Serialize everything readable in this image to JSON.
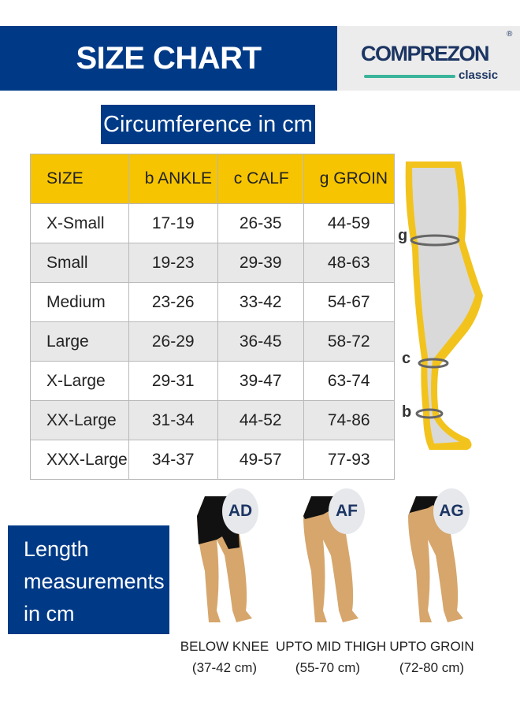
{
  "header": {
    "title": "SIZE CHART",
    "brand": "COMPREZON",
    "brand_sub": "classic",
    "registered": "®"
  },
  "circumference_title": "Circumference in cm",
  "table": {
    "headers": [
      "SIZE",
      "b ANKLE",
      "c CALF",
      "g GROIN"
    ],
    "rows": [
      [
        "X-Small",
        "17-19",
        "26-35",
        "44-59"
      ],
      [
        "Small",
        "19-23",
        "29-39",
        "48-63"
      ],
      [
        "Medium",
        "23-26",
        "33-42",
        "54-67"
      ],
      [
        "Large",
        "26-29",
        "36-45",
        "58-72"
      ],
      [
        "X-Large",
        "29-31",
        "39-47",
        "63-74"
      ],
      [
        "XX-Large",
        "31-34",
        "44-52",
        "74-86"
      ],
      [
        "XXX-Large",
        "34-37",
        "49-57",
        "77-93"
      ]
    ]
  },
  "diagram_markers": {
    "g": "g",
    "c": "c",
    "b": "b"
  },
  "length": {
    "title_lines": [
      "Length",
      "measurements",
      "in cm"
    ],
    "options": [
      {
        "code": "AD",
        "label": "BELOW KNEE",
        "range": "(37-42 cm)"
      },
      {
        "code": "AF",
        "label": "UPTO MID THIGH",
        "range": "(55-70 cm)"
      },
      {
        "code": "AG",
        "label": "UPTO GROIN",
        "range": "(72-80 cm)"
      }
    ]
  },
  "colors": {
    "brand_blue": "#003a87",
    "header_yellow": "#f6c400",
    "accent_teal": "#3ab49a",
    "skin": "#d6a66c"
  }
}
